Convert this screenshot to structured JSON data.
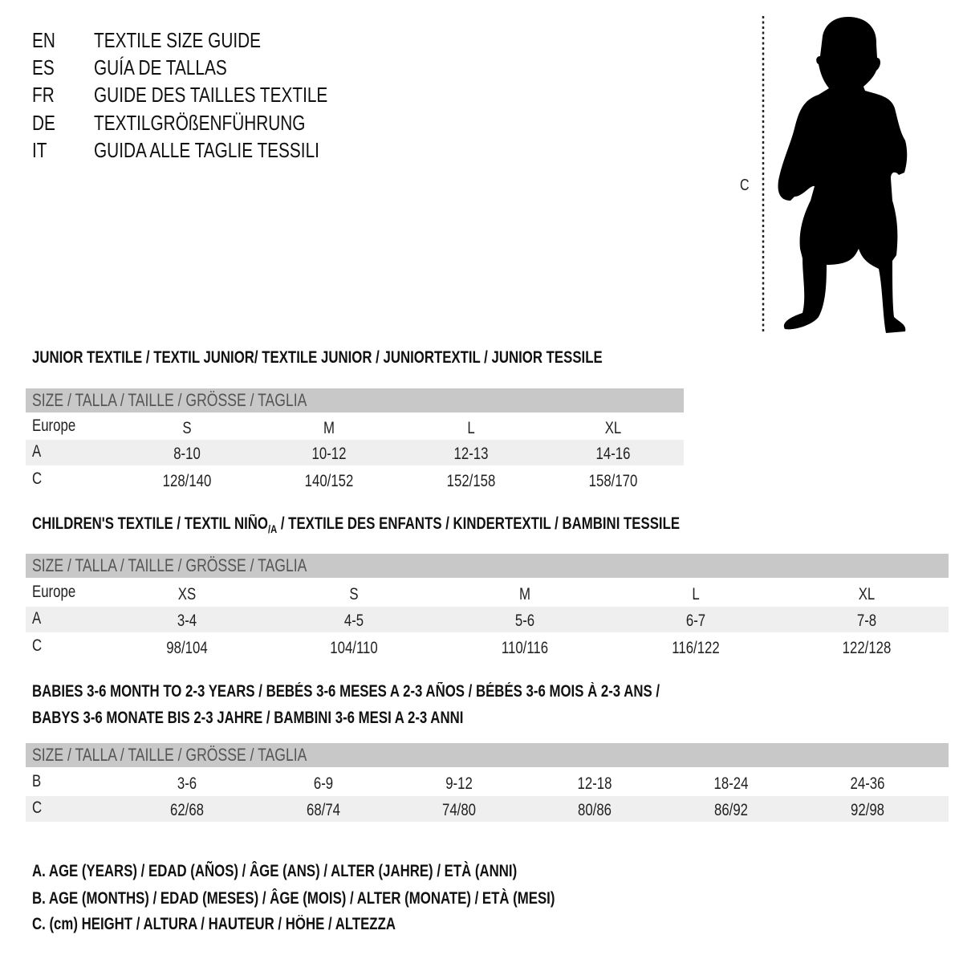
{
  "header": {
    "languages": [
      {
        "code": "EN",
        "title": "TEXTILE SIZE GUIDE"
      },
      {
        "code": "ES",
        "title": "GUÍA DE TALLAS"
      },
      {
        "code": "FR",
        "title": "GUIDE DES TAILLES TEXTILE"
      },
      {
        "code": "DE",
        "title": "TEXTILGRÖßENFÜHRUNG"
      },
      {
        "code": "IT",
        "title": "GUIDA ALLE TAGLIE TESSILI"
      }
    ]
  },
  "figure": {
    "height_label": "C",
    "icon": "child-silhouette"
  },
  "colors": {
    "header_band": "#c8c8c8",
    "shaded_row": "#efefef"
  },
  "tables": [
    {
      "title": [
        "JUNIOR TEXTILE / TEXTIL JUNIOR/ TEXTILE JUNIOR / JUNIORTEXTIL / JUNIOR TESSILE"
      ],
      "header": "SIZE / TALLA / TAILLE / GRÖSSE / TAGLIA",
      "rows": [
        {
          "label": "Europe",
          "values": [
            "S",
            "M",
            "L",
            "XL"
          ]
        },
        {
          "label": "A",
          "values": [
            "8-10",
            "10-12",
            "12-13",
            "14-16"
          ]
        },
        {
          "label": "C",
          "values": [
            "128/140",
            "140/152",
            "152/158",
            "158/170"
          ]
        }
      ]
    },
    {
      "title": [
        "CHILDREN'S TEXTILE / TEXTIL NIÑO",
        "/A",
        " / TEXTILE DES ENFANTS / KINDERTEXTIL / BAMBINI TESSILE"
      ],
      "header": "SIZE / TALLA / TAILLE / GRÖSSE / TAGLIA",
      "rows": [
        {
          "label": "Europe",
          "values": [
            "XS",
            "S",
            "M",
            "L",
            "XL"
          ]
        },
        {
          "label": "A",
          "values": [
            "3-4",
            "4-5",
            "5-6",
            "6-7",
            "7-8"
          ]
        },
        {
          "label": "C",
          "values": [
            "98/104",
            "104/110",
            "110/116",
            "116/122",
            "122/128"
          ]
        }
      ]
    },
    {
      "title": [
        "BABIES 3-6 MONTH TO 2-3 YEARS / BEBÉS 3-6 MESES A 2-3 AÑOS / BÉBÉS 3-6 MOIS À 2-3 ANS /",
        "BABYS 3-6 MONATE BIS 2-3 JAHRE / BAMBINI 3-6 MESI A 2-3 ANNI"
      ],
      "header": "SIZE / TALLA / TAILLE / GRÖSSE / TAGLIA",
      "rows": [
        {
          "label": "B",
          "values": [
            "3-6",
            "6-9",
            "9-12",
            "12-18",
            "18-24",
            "24-36"
          ]
        },
        {
          "label": "C",
          "values": [
            "62/68",
            "68/74",
            "74/80",
            "80/86",
            "86/92",
            "92/98"
          ]
        }
      ]
    }
  ],
  "legend": [
    "A. AGE (YEARS) / EDAD (AÑOS) / ÂGE (ANS) / ALTER (JAHRE) / ETÀ (ANNI)",
    "B. AGE (MONTHS) / EDAD (MESES) / ÂGE (MOIS) / ALTER (MONATE) / ETÀ (MESI)",
    "C. (cm) HEIGHT / ALTURA / HAUTEUR / HÖHE / ALTEZZA"
  ]
}
